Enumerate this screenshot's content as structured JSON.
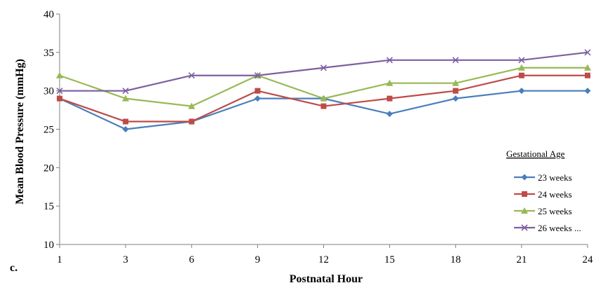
{
  "panel_label": "c.",
  "chart_data": {
    "type": "line",
    "title": "",
    "xlabel": "Postnatal Hour",
    "ylabel": "Mean Blood Pressure (mmHg)",
    "x": [
      "1",
      "3",
      "6",
      "9",
      "12",
      "15",
      "18",
      "21",
      "24"
    ],
    "ylim": [
      10,
      40
    ],
    "yticks": [
      10,
      15,
      20,
      25,
      30,
      35,
      40
    ],
    "grid": false,
    "legend": {
      "title": "Gestational Age",
      "position": "bottom-right"
    },
    "series": [
      {
        "name": "23 weeks",
        "color": "#4a7ebb",
        "marker": "diamond",
        "values": [
          29,
          25,
          26,
          29,
          29,
          27,
          29,
          30,
          30
        ]
      },
      {
        "name": "24 weeks",
        "color": "#be4b48",
        "marker": "square",
        "values": [
          29,
          26,
          26,
          30,
          28,
          29,
          30,
          32,
          32
        ]
      },
      {
        "name": "25 weeks",
        "color": "#98b954",
        "marker": "triangle",
        "values": [
          32,
          29,
          28,
          32,
          29,
          31,
          31,
          33,
          33
        ]
      },
      {
        "name": "26 weeks ...",
        "color": "#7d5fa0",
        "marker": "x",
        "values": [
          30,
          30,
          32,
          32,
          33,
          34,
          34,
          34,
          35
        ]
      }
    ]
  }
}
